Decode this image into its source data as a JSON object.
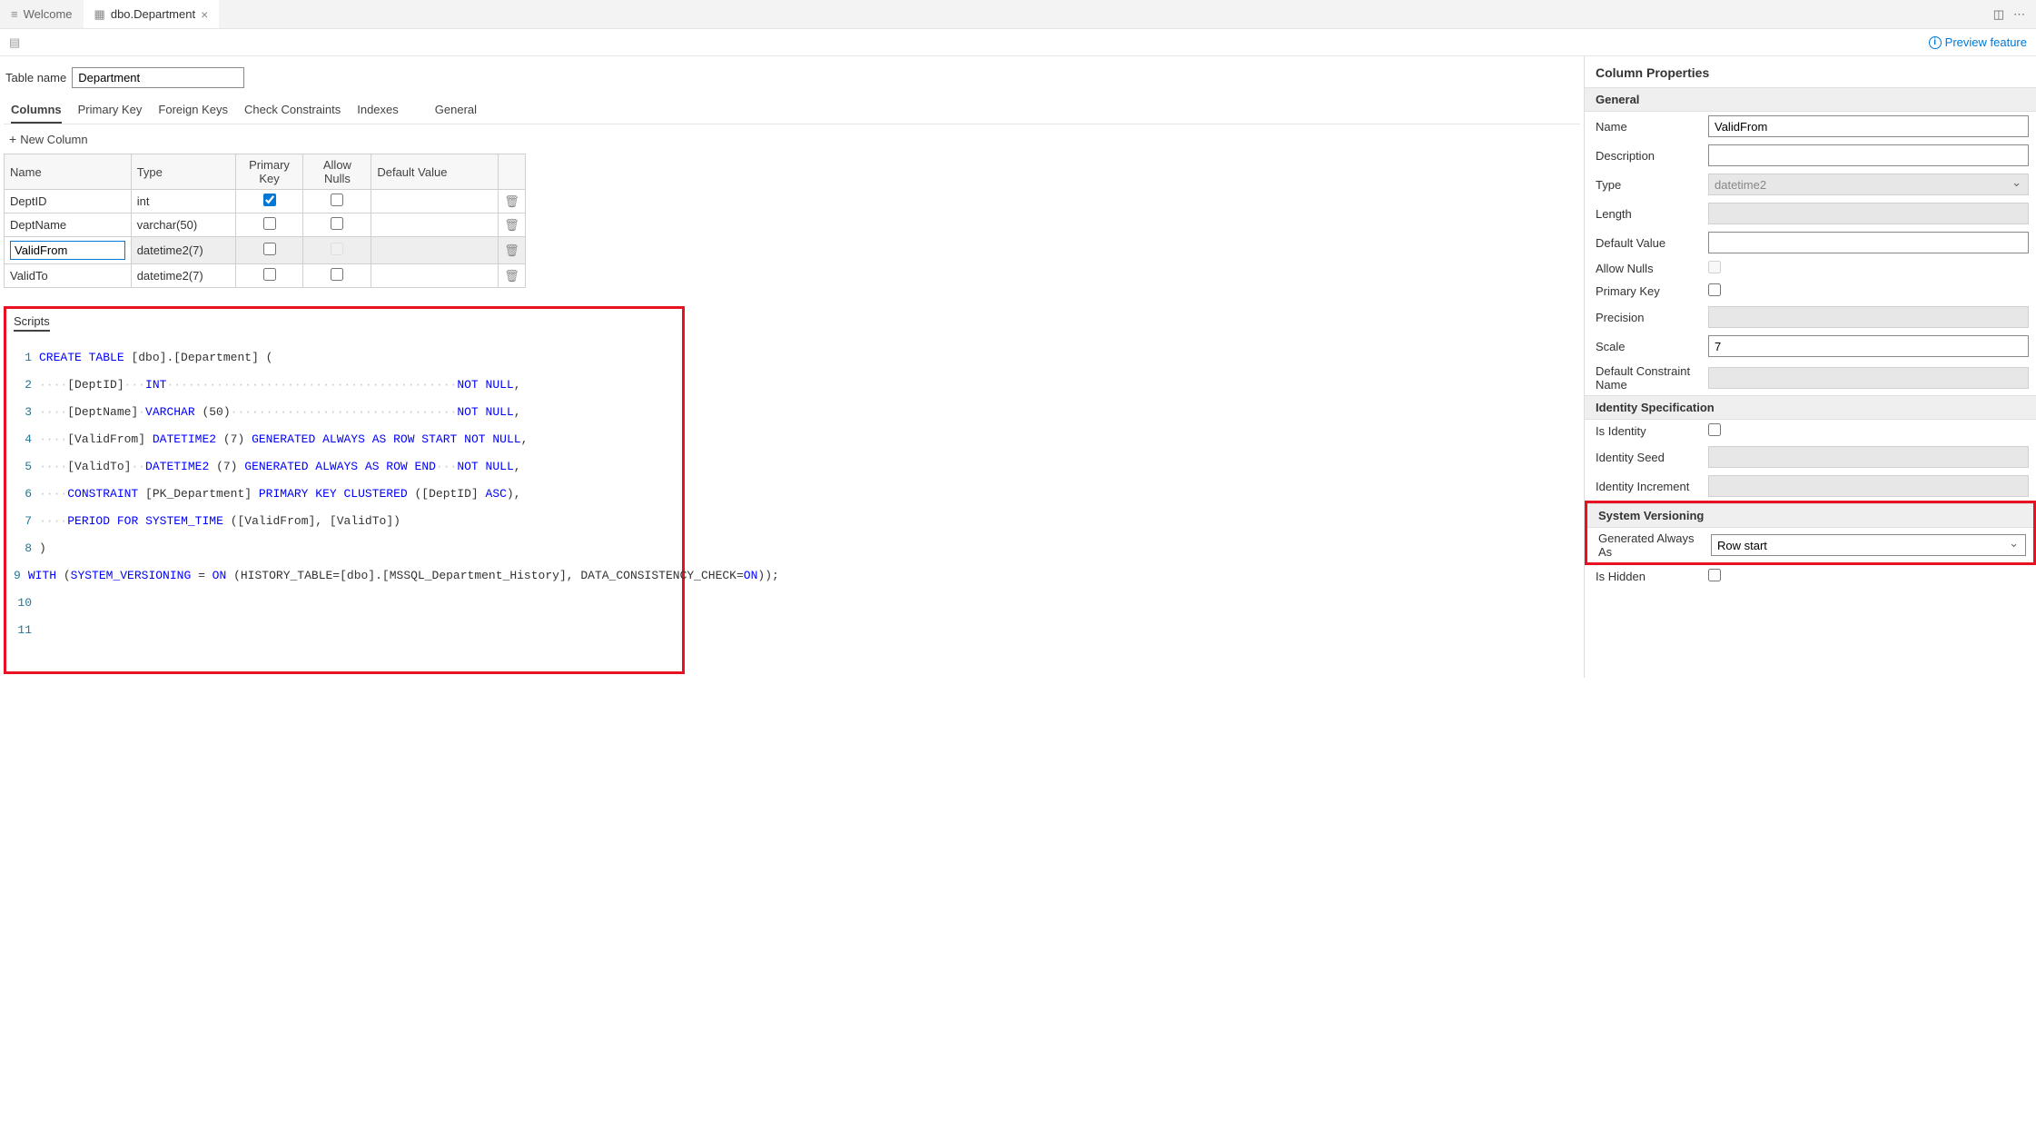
{
  "tabs": {
    "welcome": "Welcome",
    "active": "dbo.Department"
  },
  "preview_feature": "Preview feature",
  "table_name_label": "Table name",
  "table_name_value": "Department",
  "sub_tabs": {
    "columns": "Columns",
    "primary_key": "Primary Key",
    "foreign_keys": "Foreign Keys",
    "check_constraints": "Check Constraints",
    "indexes": "Indexes",
    "general": "General"
  },
  "new_column": "New Column",
  "cols_header": {
    "name": "Name",
    "type": "Type",
    "pk": "Primary Key",
    "nulls": "Allow Nulls",
    "default": "Default Value"
  },
  "rows": [
    {
      "name": "DeptID",
      "type": "int",
      "pk": true,
      "nulls": false
    },
    {
      "name": "DeptName",
      "type": "varchar(50)",
      "pk": false,
      "nulls": false
    },
    {
      "name": "ValidFrom",
      "type": "datetime2(7)",
      "pk": false,
      "nulls": false,
      "selected": true
    },
    {
      "name": "ValidTo",
      "type": "datetime2(7)",
      "pk": false,
      "nulls": false
    }
  ],
  "scripts_title": "Scripts",
  "rp": {
    "title": "Column Properties",
    "general_section": "General",
    "name_label": "Name",
    "name_value": "ValidFrom",
    "description_label": "Description",
    "description_value": "",
    "type_label": "Type",
    "type_value": "datetime2",
    "length_label": "Length",
    "default_value_label": "Default Value",
    "default_value": "",
    "allow_nulls_label": "Allow Nulls",
    "primary_key_label": "Primary Key",
    "precision_label": "Precision",
    "scale_label": "Scale",
    "scale_value": "7",
    "default_constraint_label": "Default Constraint Name",
    "identity_section": "Identity Specification",
    "is_identity_label": "Is Identity",
    "identity_seed_label": "Identity Seed",
    "identity_increment_label": "Identity Increment",
    "sv_section": "System Versioning",
    "generated_always_label": "Generated Always As",
    "generated_always_value": "Row start",
    "is_hidden_label": "Is Hidden"
  }
}
